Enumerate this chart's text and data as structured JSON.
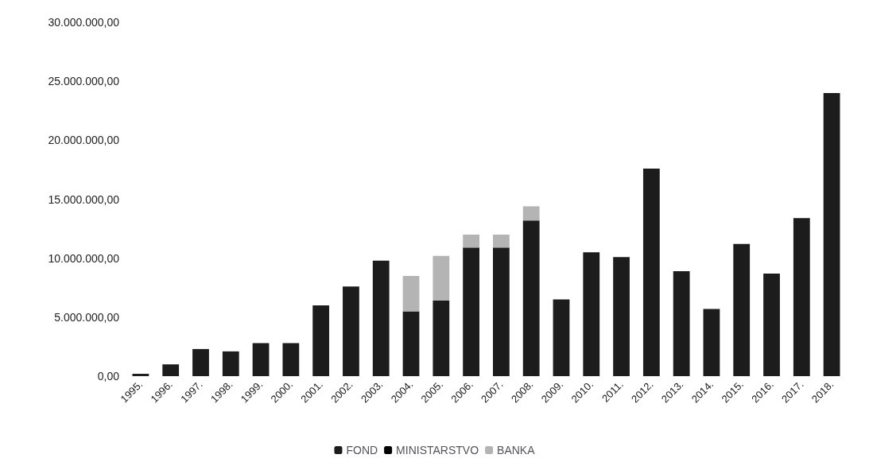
{
  "chart_data": {
    "type": "bar",
    "stacked": true,
    "categories": [
      "1995.",
      "1996.",
      "1997.",
      "1998.",
      "1999.",
      "2000.",
      "2001.",
      "2002.",
      "2003.",
      "2004.",
      "2005.",
      "2006.",
      "2007.",
      "2008.",
      "2009.",
      "2010.",
      "2011.",
      "2012.",
      "2013.",
      "2014.",
      "2015.",
      "2016.",
      "2017.",
      "2018."
    ],
    "series": [
      {
        "name": "FOND",
        "color": "#1c1c1c",
        "values": [
          200000,
          1000000,
          2300000,
          2100000,
          2800000,
          2800000,
          6000000,
          7600000,
          9800000,
          5500000,
          6400000,
          10900000,
          10900000,
          13200000,
          6500000,
          10500000,
          10100000,
          17600000,
          8900000,
          5700000,
          11200000,
          8700000,
          13400000,
          24000000
        ]
      },
      {
        "name": "MINISTARSTVO",
        "color": "#000000",
        "values": [
          null,
          null,
          null,
          null,
          null,
          null,
          null,
          null,
          null,
          null,
          null,
          null,
          null,
          null,
          null,
          null,
          null,
          null,
          null,
          null,
          null,
          null,
          null,
          null
        ]
      },
      {
        "name": "BANKA",
        "color": "#b4b4b4",
        "values": [
          null,
          null,
          null,
          null,
          null,
          null,
          null,
          null,
          null,
          3000000,
          3800000,
          1100000,
          1100000,
          1200000,
          null,
          null,
          null,
          null,
          null,
          null,
          null,
          null,
          null,
          null
        ]
      }
    ],
    "ylim": [
      0,
      30000000
    ],
    "yticks": [
      {
        "value": 0,
        "label": "0,00"
      },
      {
        "value": 5000000,
        "label": "5.000.000,00"
      },
      {
        "value": 10000000,
        "label": "10.000.000,00"
      },
      {
        "value": 15000000,
        "label": "15.000.000,00"
      },
      {
        "value": 20000000,
        "label": "20.000.000,00"
      },
      {
        "value": 25000000,
        "label": "25.000.000,00"
      },
      {
        "value": 30000000,
        "label": "30.000.000,00"
      }
    ],
    "grid": false,
    "legend": "bottom"
  }
}
